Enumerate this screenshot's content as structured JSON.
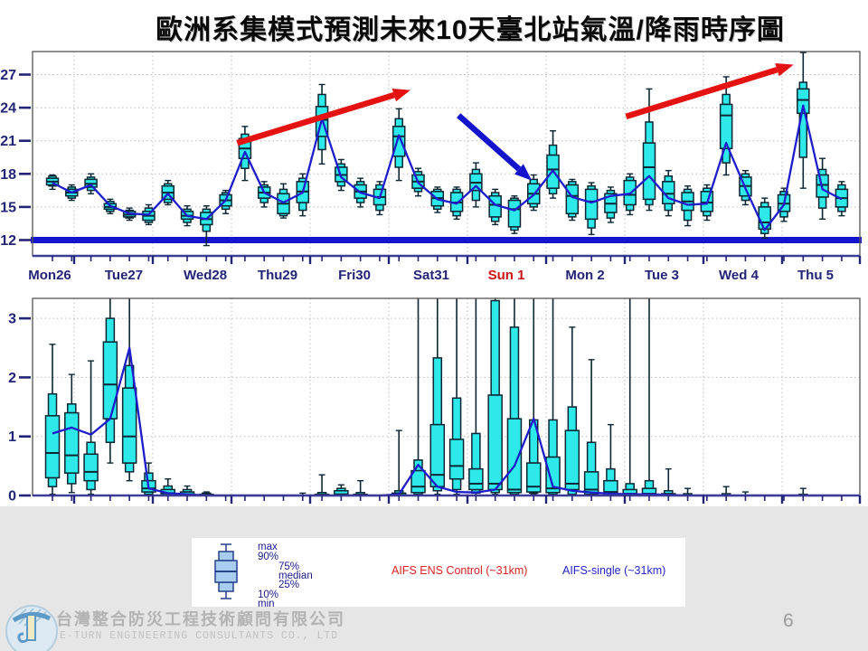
{
  "title": "歐洲系集模式預測未來10天臺北站氣溫/降雨時序圖",
  "colors": {
    "box_fill": "#2ee9ea",
    "box_stroke": "#0c2633",
    "forecast_line": "#1d1dcb",
    "reference_line": "#1414cf",
    "grid": "#bcbcbc",
    "frame": "#555555",
    "axis_accent": "#3d3d99",
    "tick_label": "#232377",
    "day_label": "#232377",
    "day_label_highlight": "#cc1111",
    "arrow_red": "#e51212",
    "arrow_blue": "#1414cc",
    "legend_text": "#1a1a8c",
    "legend_control": "#dd2222",
    "legend_single": "#2424cc"
  },
  "chart_data": [
    {
      "type": "boxplot_timeseries",
      "name": "temperature",
      "title": "歐洲系集模式預測未來10天臺北站氣溫",
      "y_ticks": [
        12,
        15,
        18,
        21,
        24,
        27
      ],
      "grid_y": [
        15,
        18,
        21,
        24,
        27
      ],
      "ylim": [
        10.6,
        29.1
      ],
      "reference_line": 12,
      "percentile_order": [
        "min",
        "p10",
        "p25",
        "median",
        "p75",
        "p90",
        "max"
      ],
      "day_labels": [
        {
          "label": "Mon26",
          "highlight": false
        },
        {
          "label": "Tue27",
          "highlight": false
        },
        {
          "label": "Wed28",
          "highlight": false
        },
        {
          "label": "Thu29",
          "highlight": false
        },
        {
          "label": "Fri30",
          "highlight": false
        },
        {
          "label": "Sat31",
          "highlight": false
        },
        {
          "label": "Sun 1",
          "highlight": true
        },
        {
          "label": "Mon 2",
          "highlight": false
        },
        {
          "label": "Tue 3",
          "highlight": false
        },
        {
          "label": "Wed 4",
          "highlight": false
        },
        {
          "label": "Thu 5",
          "highlight": false
        }
      ],
      "boxes": [
        [
          16.6,
          16.9,
          17.0,
          17.3,
          17.6,
          17.8,
          17.9
        ],
        [
          15.6,
          15.8,
          16.0,
          16.3,
          16.6,
          16.8,
          17.0
        ],
        [
          16.2,
          16.5,
          16.8,
          17.1,
          17.5,
          17.7,
          18.0
        ],
        [
          14.4,
          14.6,
          14.8,
          15.0,
          15.3,
          15.5,
          15.7
        ],
        [
          13.8,
          14.0,
          14.1,
          14.3,
          14.6,
          14.7,
          14.9
        ],
        [
          13.4,
          13.6,
          13.8,
          14.2,
          14.6,
          14.9,
          15.2
        ],
        [
          15.2,
          15.4,
          15.7,
          16.3,
          16.9,
          17.1,
          17.4
        ],
        [
          13.3,
          13.6,
          13.9,
          14.2,
          14.6,
          14.8,
          15.1
        ],
        [
          11.5,
          12.8,
          13.4,
          13.9,
          14.5,
          14.8,
          15.1
        ],
        [
          14.4,
          14.8,
          15.1,
          15.6,
          16.1,
          16.3,
          16.5
        ],
        [
          17.4,
          18.5,
          19.4,
          20.3,
          21.2,
          21.6,
          22.3
        ],
        [
          15.0,
          15.4,
          15.8,
          16.3,
          16.8,
          17.0,
          17.3
        ],
        [
          14.0,
          14.2,
          14.4,
          15.3,
          16.2,
          16.6,
          17.1
        ],
        [
          14.2,
          14.7,
          15.4,
          16.4,
          17.3,
          17.6,
          18.0
        ],
        [
          18.9,
          20.2,
          21.4,
          22.9,
          24.1,
          25.2,
          26.1
        ],
        [
          16.5,
          16.9,
          17.3,
          17.9,
          18.6,
          18.9,
          19.3
        ],
        [
          15.0,
          15.4,
          15.8,
          16.4,
          17.0,
          17.3,
          17.6
        ],
        [
          14.3,
          14.7,
          15.2,
          15.9,
          16.6,
          17.0,
          17.3
        ],
        [
          17.4,
          18.6,
          19.6,
          21.4,
          22.3,
          23.0,
          23.9
        ],
        [
          16.0,
          16.4,
          16.7,
          17.3,
          17.9,
          18.2,
          18.5
        ],
        [
          14.5,
          14.8,
          15.1,
          15.8,
          16.4,
          16.6,
          16.8
        ],
        [
          13.9,
          14.2,
          14.6,
          15.4,
          16.3,
          16.6,
          16.8
        ],
        [
          15.0,
          15.6,
          16.5,
          17.2,
          18.0,
          18.4,
          19.0
        ],
        [
          13.4,
          13.7,
          14.1,
          15.2,
          16.0,
          16.3,
          16.6
        ],
        [
          12.6,
          12.9,
          13.2,
          14.8,
          15.6,
          15.8,
          16.0
        ],
        [
          14.7,
          15.0,
          15.3,
          16.2,
          17.1,
          17.5,
          17.9
        ],
        [
          15.8,
          16.2,
          16.7,
          18.4,
          19.7,
          20.6,
          21.9
        ],
        [
          13.8,
          14.1,
          14.4,
          16.0,
          17.0,
          17.3,
          17.5
        ],
        [
          12.5,
          13.1,
          13.9,
          15.5,
          16.6,
          16.9,
          17.2
        ],
        [
          13.6,
          14.0,
          14.5,
          15.3,
          16.2,
          16.5,
          16.8
        ],
        [
          14.3,
          14.7,
          15.2,
          16.1,
          17.4,
          17.7,
          18.0
        ],
        [
          14.7,
          15.2,
          15.7,
          18.6,
          20.8,
          22.7,
          25.7
        ],
        [
          14.2,
          14.7,
          15.3,
          16.2,
          17.3,
          17.8,
          18.3
        ],
        [
          13.3,
          13.8,
          14.7,
          15.5,
          16.3,
          16.6,
          16.9
        ],
        [
          13.8,
          14.2,
          14.6,
          15.4,
          16.4,
          16.7,
          17.0
        ],
        [
          17.9,
          19.0,
          20.3,
          23.3,
          24.3,
          25.2,
          26.8
        ],
        [
          15.2,
          15.6,
          16.0,
          16.9,
          17.7,
          18.0,
          18.3
        ],
        [
          12.2,
          12.6,
          13.0,
          13.6,
          15.0,
          15.4,
          15.8
        ],
        [
          13.7,
          14.1,
          14.6,
          15.3,
          16.1,
          16.4,
          16.7
        ],
        [
          16.7,
          19.5,
          23.5,
          24.7,
          25.7,
          26.3,
          29.0
        ],
        [
          13.9,
          14.9,
          15.9,
          17.0,
          17.9,
          18.4,
          19.4
        ],
        [
          14.2,
          14.6,
          15.0,
          15.8,
          16.6,
          17.0,
          17.3
        ]
      ],
      "single_line": [
        17.2,
        16.3,
        17.0,
        15.1,
        14.4,
        14.3,
        16.2,
        14.2,
        13.9,
        15.6,
        20.0,
        16.3,
        15.4,
        16.3,
        23.0,
        17.7,
        16.3,
        15.8,
        21.5,
        17.2,
        15.7,
        15.3,
        16.9,
        15.2,
        14.7,
        16.1,
        18.3,
        15.9,
        15.4,
        16.0,
        16.2,
        17.8,
        15.8,
        15.2,
        15.3,
        20.8,
        16.7,
        12.9,
        15.2,
        24.2,
        16.6,
        15.7
      ],
      "annotations": [
        {
          "shape": "arrow",
          "color_role": "red",
          "from": [
            10.6,
            20.8
          ],
          "to": [
            19.6,
            25.6
          ]
        },
        {
          "shape": "arrow",
          "color_role": "blue",
          "from": [
            22.1,
            23.3
          ],
          "to": [
            25.9,
            17.4
          ]
        },
        {
          "shape": "arrow",
          "color_role": "red",
          "from": [
            30.8,
            23.2
          ],
          "to": [
            39.5,
            27.9
          ]
        }
      ]
    },
    {
      "type": "boxplot_timeseries",
      "name": "rainfall",
      "title": "歐洲系集模式預測未來10天臺北站降雨",
      "y_ticks": [
        0,
        1,
        2,
        3
      ],
      "grid_y": [
        1,
        2,
        3
      ],
      "ylim": [
        0,
        3.34
      ],
      "reference_line": null,
      "percentile_order": [
        "min",
        "p10",
        "p25",
        "median",
        "p75",
        "p90",
        "max"
      ],
      "boxes": [
        [
          0.02,
          0.15,
          0.3,
          0.72,
          1.35,
          1.72,
          2.56
        ],
        [
          0.05,
          0.2,
          0.38,
          0.68,
          1.4,
          1.55,
          2.05
        ],
        [
          0.02,
          0.1,
          0.25,
          0.4,
          0.7,
          0.9,
          2.28
        ],
        [
          0.55,
          0.9,
          1.3,
          1.88,
          2.6,
          3.0,
          3.45
        ],
        [
          0.25,
          0.4,
          0.55,
          1.0,
          1.82,
          2.2,
          3.45
        ],
        [
          0.0,
          0.02,
          0.06,
          0.12,
          0.25,
          0.38,
          0.55
        ],
        [
          0,
          0,
          0.01,
          0.04,
          0.1,
          0.16,
          0.28
        ],
        [
          0,
          0,
          0,
          0.02,
          0.06,
          0.1,
          0.16
        ],
        [
          0,
          0,
          0,
          0.01,
          0.02,
          0.04,
          0.06
        ],
        [
          0,
          0,
          0,
          0,
          0,
          0,
          0
        ],
        [
          0,
          0,
          0,
          0,
          0,
          0,
          0
        ],
        [
          0,
          0,
          0,
          0,
          0,
          0,
          0
        ],
        [
          0,
          0,
          0,
          0,
          0,
          0,
          0
        ],
        [
          0,
          0,
          0,
          0,
          0,
          0,
          0.04
        ],
        [
          0,
          0,
          0,
          0,
          0.02,
          0.05,
          0.35
        ],
        [
          0,
          0,
          0,
          0.02,
          0.08,
          0.12,
          0.18
        ],
        [
          0,
          0,
          0,
          0,
          0.02,
          0.05,
          0.25
        ],
        [
          0,
          0,
          0,
          0,
          0,
          0,
          0
        ],
        [
          0,
          0,
          0,
          0.01,
          0.04,
          0.08,
          1.1
        ],
        [
          0,
          0.02,
          0.05,
          0.15,
          0.42,
          0.6,
          3.45
        ],
        [
          0.02,
          0.08,
          0.15,
          0.35,
          1.2,
          2.33,
          3.45
        ],
        [
          0.02,
          0.1,
          0.28,
          0.5,
          0.95,
          1.65,
          3.45
        ],
        [
          0,
          0.04,
          0.1,
          0.2,
          0.45,
          1.05,
          3.45
        ],
        [
          0.02,
          0.05,
          0.1,
          0.2,
          1.7,
          3.3,
          3.45
        ],
        [
          0,
          0.02,
          0.05,
          0.1,
          1.3,
          2.85,
          3.45
        ],
        [
          0.02,
          0.04,
          0.06,
          0.15,
          0.55,
          1.28,
          3.45
        ],
        [
          0,
          0.02,
          0.05,
          0.12,
          0.65,
          1.28,
          3.45
        ],
        [
          0,
          0.02,
          0.1,
          0.2,
          1.1,
          1.5,
          2.85
        ],
        [
          0,
          0,
          0.02,
          0.1,
          0.4,
          0.9,
          2.3
        ],
        [
          0,
          0,
          0,
          0.06,
          0.25,
          0.45,
          1.2
        ],
        [
          0,
          0,
          0,
          0.03,
          0.1,
          0.2,
          3.45
        ],
        [
          0,
          0,
          0,
          0.03,
          0.12,
          0.25,
          3.45
        ],
        [
          0,
          0,
          0,
          0,
          0.03,
          0.08,
          0.45
        ],
        [
          0,
          0,
          0,
          0,
          0,
          0.03,
          0.12
        ],
        [
          0,
          0,
          0,
          0,
          0,
          0,
          0
        ],
        [
          0,
          0,
          0,
          0,
          0,
          0.03,
          0.15
        ],
        [
          0,
          0,
          0,
          0,
          0,
          0,
          0.06
        ],
        [
          0,
          0,
          0,
          0,
          0,
          0,
          0
        ],
        [
          0,
          0,
          0,
          0,
          0,
          0,
          0
        ],
        [
          0,
          0,
          0,
          0,
          0,
          0.02,
          0.12
        ],
        [
          0,
          0,
          0,
          0,
          0,
          0,
          0
        ],
        [
          0,
          0,
          0,
          0,
          0,
          0,
          0
        ]
      ],
      "single_line": [
        1.05,
        1.15,
        1.03,
        1.3,
        2.5,
        0.12,
        0.04,
        0.02,
        0,
        0,
        0,
        0,
        0,
        0,
        0,
        0,
        0,
        0,
        0.02,
        0.52,
        0.15,
        0.06,
        0.05,
        0.1,
        0.5,
        1.3,
        0.15,
        0.08,
        0.05,
        0.03,
        0.02,
        0.02,
        0.01,
        0,
        0,
        0,
        0,
        0,
        0,
        0,
        0,
        0
      ],
      "annotations": []
    }
  ],
  "legend": {
    "box_labels": [
      "max",
      "90%",
      "75%",
      "median",
      "25%",
      "10%",
      "min"
    ],
    "series": [
      {
        "label": "AIFS ENS Control (~31km)",
        "color": "#dd2222"
      },
      {
        "label": "AIFS-single (~31km)",
        "color": "#2424cc"
      }
    ]
  },
  "footer": {
    "company_zh": "台灣整合防災工程技術顧問有限公司",
    "company_en": "E-TURN ENGINEERING CONSULTANTS CO., LTD",
    "page_number": "6"
  }
}
